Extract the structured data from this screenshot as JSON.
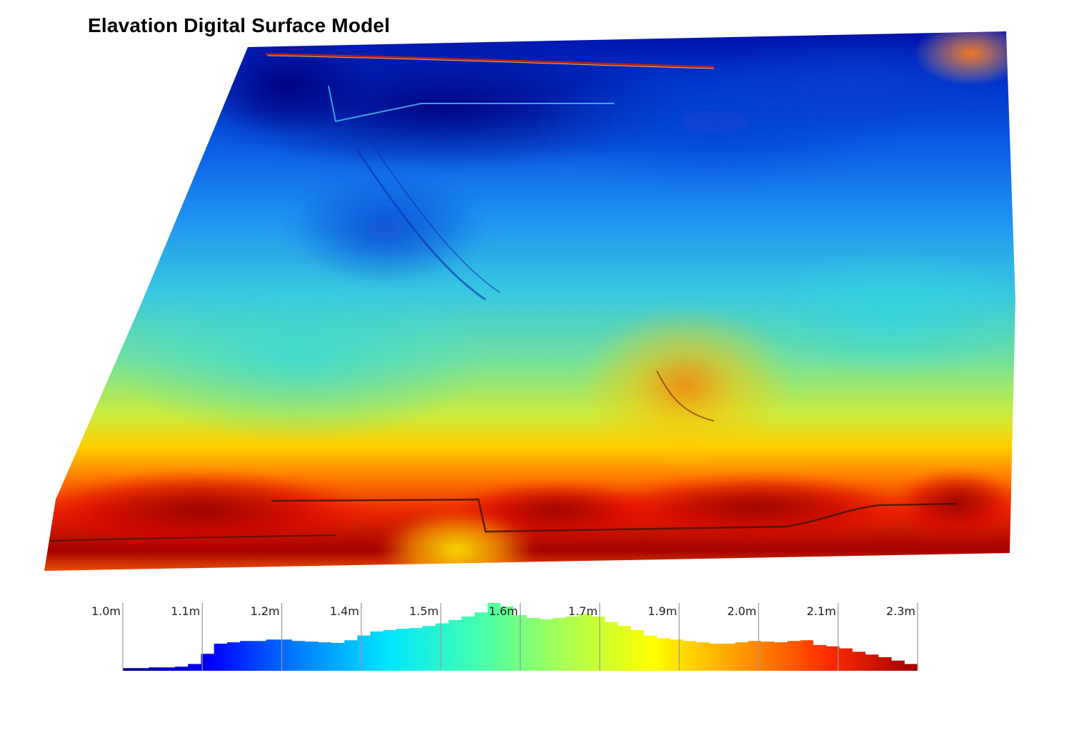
{
  "title": "Elavation Digital Surface Model",
  "colormap": [
    "#00007f",
    "#0000ff",
    "#007fff",
    "#00e5ff",
    "#40ffb0",
    "#aaff50",
    "#ffff00",
    "#ff9900",
    "#ff2a00",
    "#9e0000"
  ],
  "legend": {
    "min": 1.0,
    "max": 2.3,
    "ticks": [
      "1.0m",
      "1.1m",
      "1.2m",
      "1.4m",
      "1.5m",
      "1.6m",
      "1.7m",
      "1.9m",
      "2.0m",
      "2.1m",
      "2.3m"
    ],
    "histogram": [
      0.04,
      0.04,
      0.05,
      0.05,
      0.06,
      0.1,
      0.25,
      0.4,
      0.42,
      0.44,
      0.44,
      0.46,
      0.46,
      0.44,
      0.43,
      0.42,
      0.41,
      0.45,
      0.52,
      0.58,
      0.6,
      0.62,
      0.63,
      0.66,
      0.7,
      0.75,
      0.8,
      0.86,
      1.0,
      0.95,
      0.82,
      0.78,
      0.76,
      0.78,
      0.8,
      0.84,
      0.8,
      0.72,
      0.66,
      0.6,
      0.52,
      0.48,
      0.46,
      0.44,
      0.42,
      0.4,
      0.4,
      0.42,
      0.44,
      0.43,
      0.42,
      0.44,
      0.45,
      0.38,
      0.36,
      0.33,
      0.28,
      0.24,
      0.2,
      0.15,
      0.1
    ]
  }
}
